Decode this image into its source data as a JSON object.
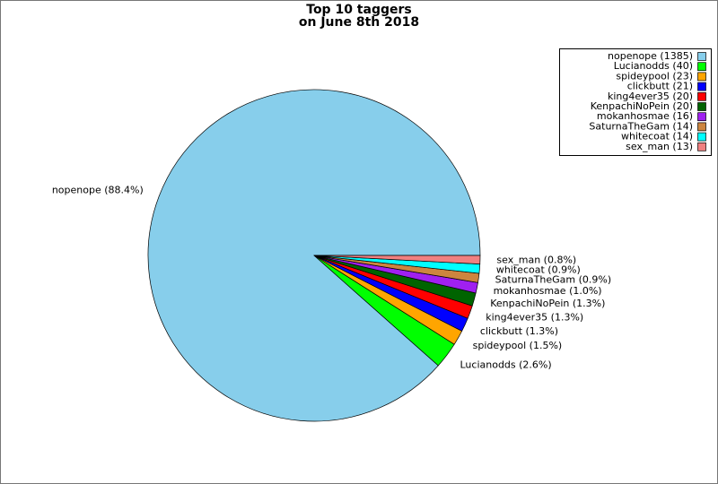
{
  "chart_data": {
    "type": "pie",
    "title_lines": [
      "Top 10 taggers",
      "on June 8th 2018"
    ],
    "legend_labels": [
      "nopenope (1385)",
      "Lucianodds (40)",
      "spideypool (23)",
      "clickbutt (21)",
      "king4ever35 (20)",
      "KenpachiNoPein (20)",
      "mokanhosmae (16)",
      "SaturnaTheGam (14)",
      "whitecoat (14)",
      "sex_man (13)"
    ],
    "values": [
      1385,
      40,
      23,
      21,
      20,
      20,
      16,
      14,
      14,
      13
    ],
    "slice_labels": [
      "nopenope (88.4%)",
      "Lucianodds (2.6%)",
      "spideypool (1.5%)",
      "clickbutt (1.3%)",
      "king4ever35 (1.3%)",
      "KenpachiNoPein (1.3%)",
      "mokanhosmae (1.0%)",
      "SaturnaTheGam (0.9%)",
      "whitecoat (0.9%)",
      "sex_man (0.8%)"
    ],
    "colors": [
      "#87ceeb",
      "#00ff00",
      "#ffa500",
      "#0000ff",
      "#ff0000",
      "#006400",
      "#a020f0",
      "#cd853f",
      "#00ffff",
      "#f08080"
    ],
    "legend_position": "upper right"
  }
}
